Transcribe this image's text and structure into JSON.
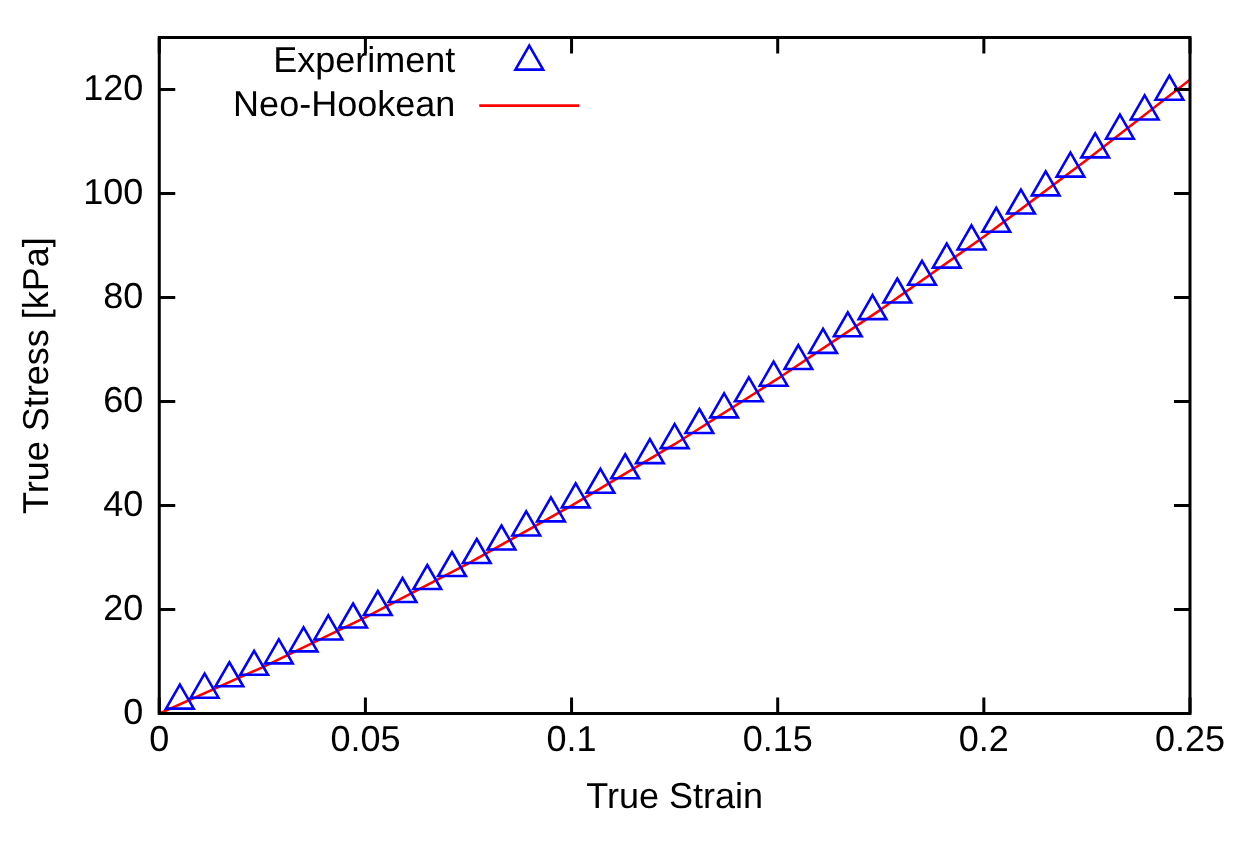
{
  "chart_data": {
    "type": "scatter",
    "xlabel": "True Strain",
    "ylabel": "True Stress [kPa]",
    "xlim": [
      0,
      0.25
    ],
    "ylim": [
      0,
      130
    ],
    "xticks": [
      0,
      0.05,
      0.1,
      0.15,
      0.2,
      0.25
    ],
    "yticks": [
      0,
      20,
      40,
      60,
      80,
      100,
      120
    ],
    "grid": false,
    "legend": "top left",
    "series": [
      {
        "name": "Experiment",
        "marker": "triangle",
        "color": "#0000ff",
        "x": [
          0.005,
          0.011,
          0.017,
          0.023,
          0.029,
          0.035,
          0.041,
          0.047,
          0.053,
          0.059,
          0.065,
          0.071,
          0.077,
          0.083,
          0.089,
          0.095,
          0.101,
          0.107,
          0.113,
          0.119,
          0.125,
          0.131,
          0.137,
          0.143,
          0.149,
          0.155,
          0.161,
          0.167,
          0.173,
          0.179,
          0.185,
          0.191,
          0.197,
          0.203,
          0.209,
          0.215,
          0.221,
          0.227,
          0.233,
          0.239,
          0.245
        ],
        "values": [
          2.5,
          4.6,
          6.8,
          9.0,
          11.2,
          13.5,
          15.8,
          18.1,
          20.5,
          23.0,
          25.5,
          28.0,
          30.5,
          33.1,
          35.8,
          38.5,
          41.2,
          44.0,
          46.8,
          49.7,
          52.6,
          55.5,
          58.5,
          61.6,
          64.6,
          67.8,
          70.9,
          74.1,
          77.4,
          80.6,
          84.0,
          87.3,
          90.8,
          94.2,
          97.7,
          101.2,
          104.8,
          108.5,
          112.1,
          115.8,
          119.6
        ]
      },
      {
        "name": "Neo-Hookean",
        "type": "line",
        "marker": "none",
        "line_style": "solid",
        "color": "#ff0000",
        "x": [
          0,
          0.025,
          0.05,
          0.075,
          0.1,
          0.125,
          0.15,
          0.175,
          0.2,
          0.225,
          0.25
        ],
        "values": [
          0,
          8.9,
          18.5,
          28.9,
          40.0,
          51.8,
          64.4,
          77.7,
          91.7,
          106.5,
          121.9
        ]
      }
    ]
  }
}
